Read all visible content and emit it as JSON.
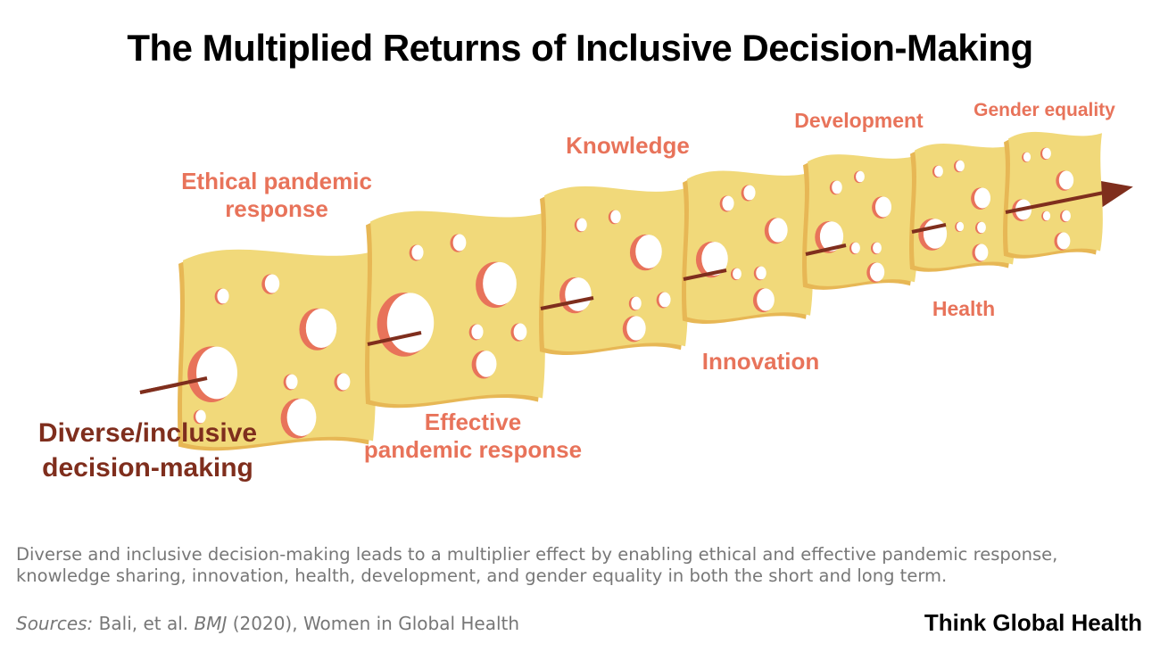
{
  "title": "The Multiplied Returns of Inclusive Decision-Making",
  "origin_label": [
    "Diverse/inclusive",
    "decision-making"
  ],
  "outcomes": [
    {
      "id": "ethical",
      "lines": [
        "Ethical pandemic",
        "response"
      ]
    },
    {
      "id": "effective",
      "lines": [
        "Effective",
        "pandemic response"
      ]
    },
    {
      "id": "knowledge",
      "lines": [
        "Knowledge"
      ]
    },
    {
      "id": "innovation",
      "lines": [
        "Innovation"
      ]
    },
    {
      "id": "development",
      "lines": [
        "Development"
      ]
    },
    {
      "id": "health",
      "lines": [
        "Health"
      ]
    },
    {
      "id": "gender",
      "lines": [
        "Gender equality"
      ]
    }
  ],
  "caption": "Diverse and inclusive decision-making leads to a multiplier effect by enabling ethical and effective pandemic response, knowledge sharing, innovation, health, development, and gender equality in both the short and long term.",
  "sources": {
    "label": "Sources:",
    "part1": " Bali, et al. ",
    "journal": "BMJ",
    "part2": " (2020), Women in Global Health"
  },
  "brand": "Think Global Health",
  "colors": {
    "cheese": "#f1d97a",
    "cheese_edge": "#e7b755",
    "hole_shadow": "#e8735a",
    "arrow": "#7f2e1d",
    "label": "#e8735a",
    "origin": "#7f2e1d"
  }
}
